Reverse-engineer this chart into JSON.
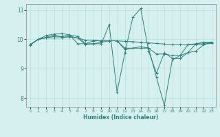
{
  "xlabel": "Humidex (Indice chaleur)",
  "ylabel": "",
  "bg_color": "#d6f0ef",
  "grid_color": "#b8dede",
  "line_color": "#2e7f7a",
  "xlim": [
    -0.5,
    23.5
  ],
  "ylim": [
    7.7,
    11.2
  ],
  "yticks": [
    8,
    9,
    10,
    11
  ],
  "xticks": [
    0,
    1,
    2,
    3,
    4,
    5,
    6,
    7,
    8,
    9,
    10,
    11,
    12,
    13,
    14,
    15,
    16,
    17,
    18,
    19,
    20,
    21,
    22,
    23
  ],
  "series": [
    [
      9.81,
      10.0,
      10.07,
      10.15,
      10.08,
      10.08,
      10.05,
      9.97,
      9.97,
      9.95,
      9.95,
      9.95,
      9.93,
      9.92,
      9.9,
      9.88,
      9.86,
      9.84,
      9.82,
      9.82,
      9.82,
      9.82,
      9.84,
      9.86
    ],
    [
      9.82,
      10.0,
      10.13,
      10.18,
      10.2,
      10.15,
      9.85,
      9.85,
      9.85,
      9.85,
      10.5,
      8.2,
      9.55,
      10.75,
      11.05,
      9.6,
      8.85,
      9.55,
      9.35,
      9.35,
      9.55,
      9.85,
      9.9,
      9.9
    ],
    [
      9.82,
      10.0,
      10.05,
      10.1,
      10.1,
      10.15,
      10.1,
      9.85,
      9.95,
      9.95,
      9.95,
      9.95,
      9.7,
      9.7,
      9.7,
      9.7,
      9.5,
      9.5,
      9.45,
      9.45,
      9.55,
      9.6,
      9.82,
      9.9
    ],
    [
      9.82,
      10.0,
      10.05,
      10.05,
      10.05,
      10.1,
      10.05,
      9.82,
      9.85,
      9.9,
      9.95,
      9.95,
      9.65,
      9.7,
      9.75,
      9.7,
      8.7,
      7.75,
      9.3,
      9.45,
      9.82,
      9.85,
      9.88,
      9.9
    ]
  ],
  "figsize": [
    3.2,
    2.0
  ],
  "dpi": 100
}
